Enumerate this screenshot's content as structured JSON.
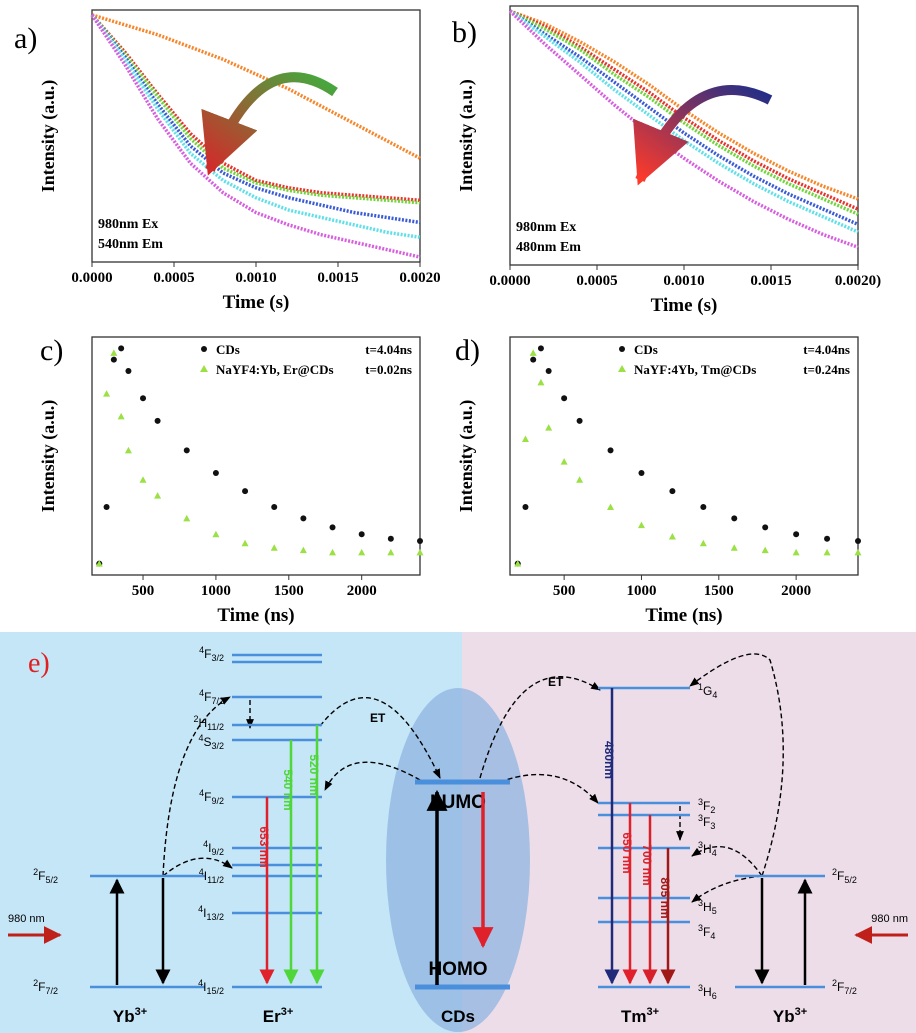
{
  "chart_data": [
    {
      "type": "line",
      "panel_label": "a)",
      "x_label": "Time (s)",
      "y_label": "Intensity (a.u.)",
      "annotations": [
        "980nm Ex",
        "540nm Em"
      ],
      "x": [
        0,
        0.0002,
        0.0004,
        0.0006,
        0.0008,
        0.001,
        0.0012,
        0.0014,
        0.0016,
        0.0018,
        0.002
      ],
      "xlim": [
        0,
        0.002
      ],
      "xticks": [
        {
          "value": 0,
          "label": "0.0000"
        },
        {
          "value": 0.0005,
          "label": "0.0005"
        },
        {
          "value": 0.001,
          "label": "0.0010"
        },
        {
          "value": 0.0015,
          "label": "0.0015"
        },
        {
          "value": 0.002,
          "label": "0.0020"
        }
      ],
      "ylim": [
        0,
        1.02
      ],
      "series": [
        {
          "color": "#f7862a",
          "values": [
            1,
            0.96,
            0.92,
            0.87,
            0.82,
            0.76,
            0.7,
            0.63,
            0.56,
            0.49,
            0.42
          ]
        },
        {
          "color": "#e8322b",
          "values": [
            1,
            0.85,
            0.68,
            0.52,
            0.4,
            0.33,
            0.3,
            0.28,
            0.27,
            0.26,
            0.25
          ]
        },
        {
          "color": "#6fd63a",
          "values": [
            1,
            0.84,
            0.67,
            0.5,
            0.38,
            0.32,
            0.29,
            0.27,
            0.26,
            0.25,
            0.24
          ]
        },
        {
          "color": "#3a5bd6",
          "values": [
            1,
            0.83,
            0.64,
            0.47,
            0.36,
            0.3,
            0.26,
            0.23,
            0.2,
            0.18,
            0.16
          ]
        },
        {
          "color": "#5fe0e8",
          "values": [
            1,
            0.82,
            0.62,
            0.44,
            0.33,
            0.26,
            0.21,
            0.18,
            0.15,
            0.12,
            0.1
          ]
        },
        {
          "color": "#d85ee0",
          "values": [
            1,
            0.8,
            0.58,
            0.4,
            0.28,
            0.2,
            0.15,
            0.11,
            0.08,
            0.05,
            0.02
          ]
        }
      ]
    },
    {
      "type": "line",
      "panel_label": "b)",
      "x_label": "Time (s)",
      "y_label": "Intensity (a.u.)",
      "annotations": [
        "980nm Ex",
        "480nm Em"
      ],
      "x": [
        0,
        0.0002,
        0.0004,
        0.0006,
        0.0008,
        0.001,
        0.0012,
        0.0014,
        0.0016,
        0.0018,
        0.002
      ],
      "xlim": [
        0,
        0.002
      ],
      "xticks": [
        {
          "value": 0,
          "label": "0.0000"
        },
        {
          "value": 0.0005,
          "label": "0.0005"
        },
        {
          "value": 0.001,
          "label": "0.0010"
        },
        {
          "value": 0.0015,
          "label": "0.0015"
        },
        {
          "value": 0.002,
          "label": "0.0020)"
        }
      ],
      "ylim": [
        0,
        1.02
      ],
      "series": [
        {
          "color": "#f7862a",
          "values": [
            1,
            0.95,
            0.88,
            0.8,
            0.71,
            0.61,
            0.52,
            0.44,
            0.37,
            0.31,
            0.26
          ]
        },
        {
          "color": "#e8322b",
          "values": [
            1,
            0.94,
            0.86,
            0.77,
            0.68,
            0.58,
            0.49,
            0.41,
            0.34,
            0.28,
            0.22
          ]
        },
        {
          "color": "#6fd63a",
          "values": [
            1,
            0.93,
            0.85,
            0.75,
            0.66,
            0.56,
            0.47,
            0.39,
            0.32,
            0.26,
            0.2
          ]
        },
        {
          "color": "#3a5bd6",
          "values": [
            1,
            0.91,
            0.82,
            0.72,
            0.62,
            0.52,
            0.43,
            0.35,
            0.28,
            0.22,
            0.16
          ]
        },
        {
          "color": "#5fe0e8",
          "values": [
            1,
            0.9,
            0.8,
            0.69,
            0.59,
            0.49,
            0.4,
            0.32,
            0.25,
            0.19,
            0.13
          ]
        },
        {
          "color": "#d85ee0",
          "values": [
            1,
            0.87,
            0.75,
            0.63,
            0.52,
            0.42,
            0.33,
            0.25,
            0.18,
            0.12,
            0.07
          ]
        }
      ]
    },
    {
      "type": "scatter",
      "panel_label": "c)",
      "x_label": "Time (ns)",
      "y_label": "Intensity (a.u.)",
      "x": [
        200,
        250,
        300,
        350,
        400,
        500,
        600,
        800,
        1000,
        1200,
        1400,
        1600,
        1800,
        2000,
        2200,
        2400
      ],
      "xlim": [
        150,
        2400
      ],
      "xticks": [
        500,
        1000,
        1500,
        2000
      ],
      "ylim": [
        0,
        1.05
      ],
      "series": [
        {
          "name": "CDs",
          "lifetime": "t=4.04ns",
          "color": "#111111",
          "marker": "circle",
          "values": [
            0.05,
            0.3,
            0.95,
            1,
            0.9,
            0.78,
            0.68,
            0.55,
            0.45,
            0.37,
            0.3,
            0.25,
            0.21,
            0.18,
            0.16,
            0.15
          ]
        },
        {
          "name": "NaYF4:Yb, Er@CDs",
          "lifetime": "t=0.02ns",
          "color": "#9be045",
          "marker": "triangle",
          "values": [
            0.05,
            0.8,
            0.98,
            0.7,
            0.55,
            0.42,
            0.35,
            0.25,
            0.18,
            0.14,
            0.12,
            0.11,
            0.1,
            0.1,
            0.1,
            0.1
          ]
        }
      ]
    },
    {
      "type": "scatter",
      "panel_label": "d)",
      "x_label": "Time (ns)",
      "y_label": "Intensity (a.u.)",
      "x": [
        200,
        250,
        300,
        350,
        400,
        500,
        600,
        800,
        1000,
        1200,
        1400,
        1600,
        1800,
        2000,
        2200,
        2400
      ],
      "xlim": [
        150,
        2400
      ],
      "xticks": [
        500,
        1000,
        1500,
        2000
      ],
      "ylim": [
        0,
        1.05
      ],
      "series": [
        {
          "name": "CDs",
          "lifetime": "t=4.04ns",
          "color": "#111111",
          "marker": "circle",
          "values": [
            0.05,
            0.3,
            0.95,
            1,
            0.9,
            0.78,
            0.68,
            0.55,
            0.45,
            0.37,
            0.3,
            0.25,
            0.21,
            0.18,
            0.16,
            0.15
          ]
        },
        {
          "name": "NaYF:4Yb, Tm@CDs",
          "lifetime": "t=0.24ns",
          "color": "#9be045",
          "marker": "triangle",
          "values": [
            0.05,
            0.6,
            0.98,
            0.85,
            0.65,
            0.5,
            0.42,
            0.3,
            0.22,
            0.17,
            0.14,
            0.12,
            0.11,
            0.1,
            0.1,
            0.1
          ]
        }
      ]
    }
  ],
  "diagram": {
    "panel_label": "e)",
    "ions": [
      {
        "base": "Yb",
        "sup": "3+"
      },
      {
        "base": "Er",
        "sup": "3+"
      },
      {
        "base": "Tm",
        "sup": "3+"
      },
      {
        "base": "Yb",
        "sup": "3+"
      }
    ],
    "cds": "CDs",
    "lumo": "LUMO",
    "homo": "HOMO",
    "levels": [
      {
        "sup": "2",
        "term": "F",
        "sub": "5/2"
      },
      {
        "sup": "2",
        "term": "F",
        "sub": "7/2"
      },
      {
        "sup": "4",
        "term": "F",
        "sub": "3/2"
      },
      {
        "sup": "4",
        "term": "F",
        "sub": "7/2"
      },
      {
        "sup": "2",
        "term": "H",
        "sub": "11/2"
      },
      {
        "sup": "4",
        "term": "S",
        "sub": "3/2"
      },
      {
        "sup": "4",
        "term": "F",
        "sub": "9/2"
      },
      {
        "sup": "4",
        "term": "I",
        "sub": "9/2"
      },
      {
        "sup": "4",
        "term": "I",
        "sub": "11/2"
      },
      {
        "sup": "4",
        "term": "I",
        "sub": "13/2"
      },
      {
        "sup": "4",
        "term": "I",
        "sub": "15/2"
      },
      {
        "sup": "1",
        "term": "G",
        "sub": "4"
      },
      {
        "sup": "3",
        "term": "F",
        "sub": "2"
      },
      {
        "sup": "3",
        "term": "F",
        "sub": "3"
      },
      {
        "sup": "3",
        "term": "H",
        "sub": "4"
      },
      {
        "sup": "3",
        "term": "H",
        "sub": "5"
      },
      {
        "sup": "3",
        "term": "F",
        "sub": "4"
      },
      {
        "sup": "3",
        "term": "H",
        "sub": "6"
      },
      {
        "sup": "2",
        "term": "F",
        "sub": "5/2"
      },
      {
        "sup": "2",
        "term": "F",
        "sub": "7/2"
      }
    ],
    "transitions": [
      "653 nm",
      "540 nm",
      "520 nm",
      "480nm",
      "650 nm",
      "700 nm",
      "805 nm"
    ],
    "et": [
      "ET",
      "ET"
    ],
    "excitation": [
      "980 nm",
      "980 nm"
    ]
  }
}
